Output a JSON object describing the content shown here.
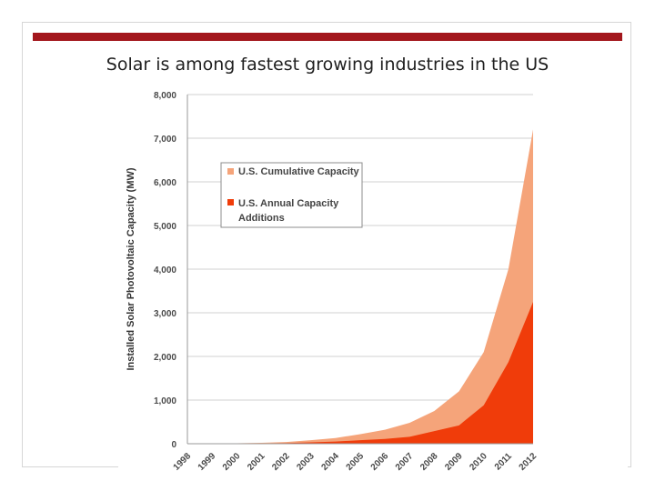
{
  "slide": {
    "title": "Solar is among fastest growing industries in the US",
    "accent_color": "#a3171d"
  },
  "chart_data": {
    "type": "area",
    "title": "",
    "xlabel": "",
    "ylabel": "Installed Solar Photovoltaic Capacity (MW)",
    "ylim": [
      0,
      8000
    ],
    "yticks": [
      "0",
      "1,000",
      "2,000",
      "3,000",
      "4,000",
      "5,000",
      "6,000",
      "7,000",
      "8,000"
    ],
    "ytick_values": [
      0,
      1000,
      2000,
      3000,
      4000,
      5000,
      6000,
      7000,
      8000
    ],
    "categories": [
      "1998",
      "1999",
      "2000",
      "2001",
      "2002",
      "2003",
      "2004",
      "2005",
      "2006",
      "2007",
      "2008",
      "2009",
      "2010",
      "2011",
      "2012"
    ],
    "grid": true,
    "legend_position": "top-left",
    "series": [
      {
        "name": "U.S. Cumulative Capacity",
        "color": "#f5a47a",
        "values": [
          0,
          5,
          10,
          20,
          40,
          80,
          130,
          220,
          320,
          480,
          750,
          1200,
          2100,
          4000,
          7200
        ]
      },
      {
        "name": "U.S. Annual Capacity Additions",
        "color": "#f03c0a",
        "values": [
          0,
          2,
          5,
          8,
          15,
          30,
          50,
          80,
          110,
          160,
          290,
          420,
          880,
          1870,
          3250
        ]
      }
    ]
  }
}
